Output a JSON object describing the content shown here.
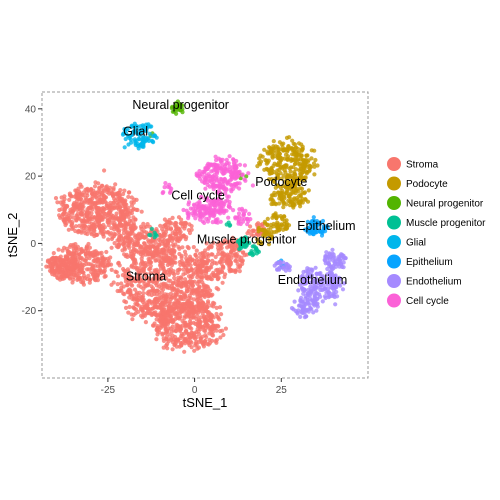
{
  "chart_data": {
    "type": "scatter",
    "title": "",
    "xlabel": "tSNE_1",
    "ylabel": "tSNE_2",
    "xlim": [
      -44,
      50
    ],
    "ylim": [
      -40,
      45
    ],
    "x_ticks": [
      -25,
      0,
      25
    ],
    "y_ticks": [
      -20,
      0,
      20,
      40
    ],
    "x_tick_labels": [
      "-25",
      "0",
      "25"
    ],
    "y_tick_labels": [
      "-20",
      "0",
      "20",
      "40"
    ],
    "grid": false,
    "legend_position": "right",
    "series": [
      {
        "name": "Stroma",
        "color": "#F8766D",
        "label_position": [
          -14,
          -11
        ],
        "clusters": [
          {
            "cx": -28,
            "cy": 10,
            "rx": 12,
            "ry": 8,
            "n": 520
          },
          {
            "cx": -33,
            "cy": -6,
            "rx": 9,
            "ry": 6,
            "n": 300
          },
          {
            "cx": -38,
            "cy": -7,
            "rx": 5,
            "ry": 4,
            "n": 100
          },
          {
            "cx": -8,
            "cy": -12,
            "rx": 15,
            "ry": 13,
            "n": 800
          },
          {
            "cx": -2,
            "cy": -24,
            "rx": 11,
            "ry": 8,
            "n": 380
          },
          {
            "cx": 8,
            "cy": -4,
            "rx": 8,
            "ry": 6,
            "n": 180
          },
          {
            "cx": -16,
            "cy": 1,
            "rx": 9,
            "ry": 5,
            "n": 200
          },
          {
            "cx": -5,
            "cy": 4,
            "rx": 5,
            "ry": 4,
            "n": 80
          },
          {
            "cx": 18,
            "cy": 4,
            "rx": 3,
            "ry": 2.5,
            "n": 30
          }
        ]
      },
      {
        "name": "Podocyte",
        "color": "#C49A00",
        "label_position": [
          25,
          17
        ],
        "clusters": [
          {
            "cx": 27,
            "cy": 24,
            "rx": 8,
            "ry": 7,
            "n": 260
          },
          {
            "cx": 27,
            "cy": 14,
            "rx": 6,
            "ry": 4,
            "n": 110
          },
          {
            "cx": 24,
            "cy": 6,
            "rx": 4,
            "ry": 3,
            "n": 50
          },
          {
            "cx": 20,
            "cy": 2,
            "rx": 3,
            "ry": 3,
            "n": 30
          }
        ]
      },
      {
        "name": "Neural progenitor",
        "color": "#53B400",
        "label_position": [
          -4,
          40
        ],
        "clusters": [
          {
            "cx": -5,
            "cy": 40,
            "rx": 2,
            "ry": 2,
            "n": 22
          },
          {
            "cx": 14,
            "cy": 20,
            "rx": 1,
            "ry": 1,
            "n": 3
          },
          {
            "cx": -12,
            "cy": 32,
            "rx": 1,
            "ry": 1,
            "n": 2
          }
        ]
      },
      {
        "name": "Muscle progenitor",
        "color": "#00C094",
        "label_position": [
          15,
          0
        ],
        "clusters": [
          {
            "cx": 14,
            "cy": 0,
            "rx": 2,
            "ry": 2,
            "n": 35
          },
          {
            "cx": 17,
            "cy": -2,
            "rx": 1.5,
            "ry": 1.5,
            "n": 15
          },
          {
            "cx": -12,
            "cy": 3,
            "rx": 1.5,
            "ry": 1.5,
            "n": 8
          },
          {
            "cx": 10,
            "cy": 6,
            "rx": 1,
            "ry": 1,
            "n": 4
          }
        ]
      },
      {
        "name": "Glial",
        "color": "#00B6EB",
        "label_position": [
          -17,
          32
        ],
        "clusters": [
          {
            "cx": -16,
            "cy": 32,
            "rx": 5,
            "ry": 4,
            "n": 85
          }
        ]
      },
      {
        "name": "Epithelium",
        "color": "#06A4FF",
        "label_position": [
          38,
          4
        ],
        "clusters": [
          {
            "cx": 35,
            "cy": 5,
            "rx": 3.5,
            "ry": 3,
            "n": 55
          },
          {
            "cx": 25,
            "cy": -6,
            "rx": 1.5,
            "ry": 1.5,
            "n": 5
          }
        ]
      },
      {
        "name": "Endothelium",
        "color": "#A58AFF",
        "label_position": [
          34,
          -12
        ],
        "clusters": [
          {
            "cx": 36,
            "cy": -12,
            "rx": 7,
            "ry": 5,
            "n": 160
          },
          {
            "cx": 40,
            "cy": -5,
            "rx": 4,
            "ry": 3,
            "n": 60
          },
          {
            "cx": 32,
            "cy": -19,
            "rx": 4,
            "ry": 3,
            "n": 60
          },
          {
            "cx": 25,
            "cy": -7,
            "rx": 3,
            "ry": 2,
            "n": 25
          }
        ]
      },
      {
        "name": "Cell cycle",
        "color": "#FB61D7",
        "label_position": [
          1,
          13
        ],
        "clusters": [
          {
            "cx": 8,
            "cy": 20,
            "rx": 7,
            "ry": 6,
            "n": 200
          },
          {
            "cx": 4,
            "cy": 10,
            "rx": 7,
            "ry": 4,
            "n": 150
          },
          {
            "cx": 14,
            "cy": 8,
            "rx": 3,
            "ry": 2.5,
            "n": 25
          },
          {
            "cx": -8,
            "cy": 16,
            "rx": 2,
            "ry": 2,
            "n": 10
          }
        ]
      }
    ]
  }
}
